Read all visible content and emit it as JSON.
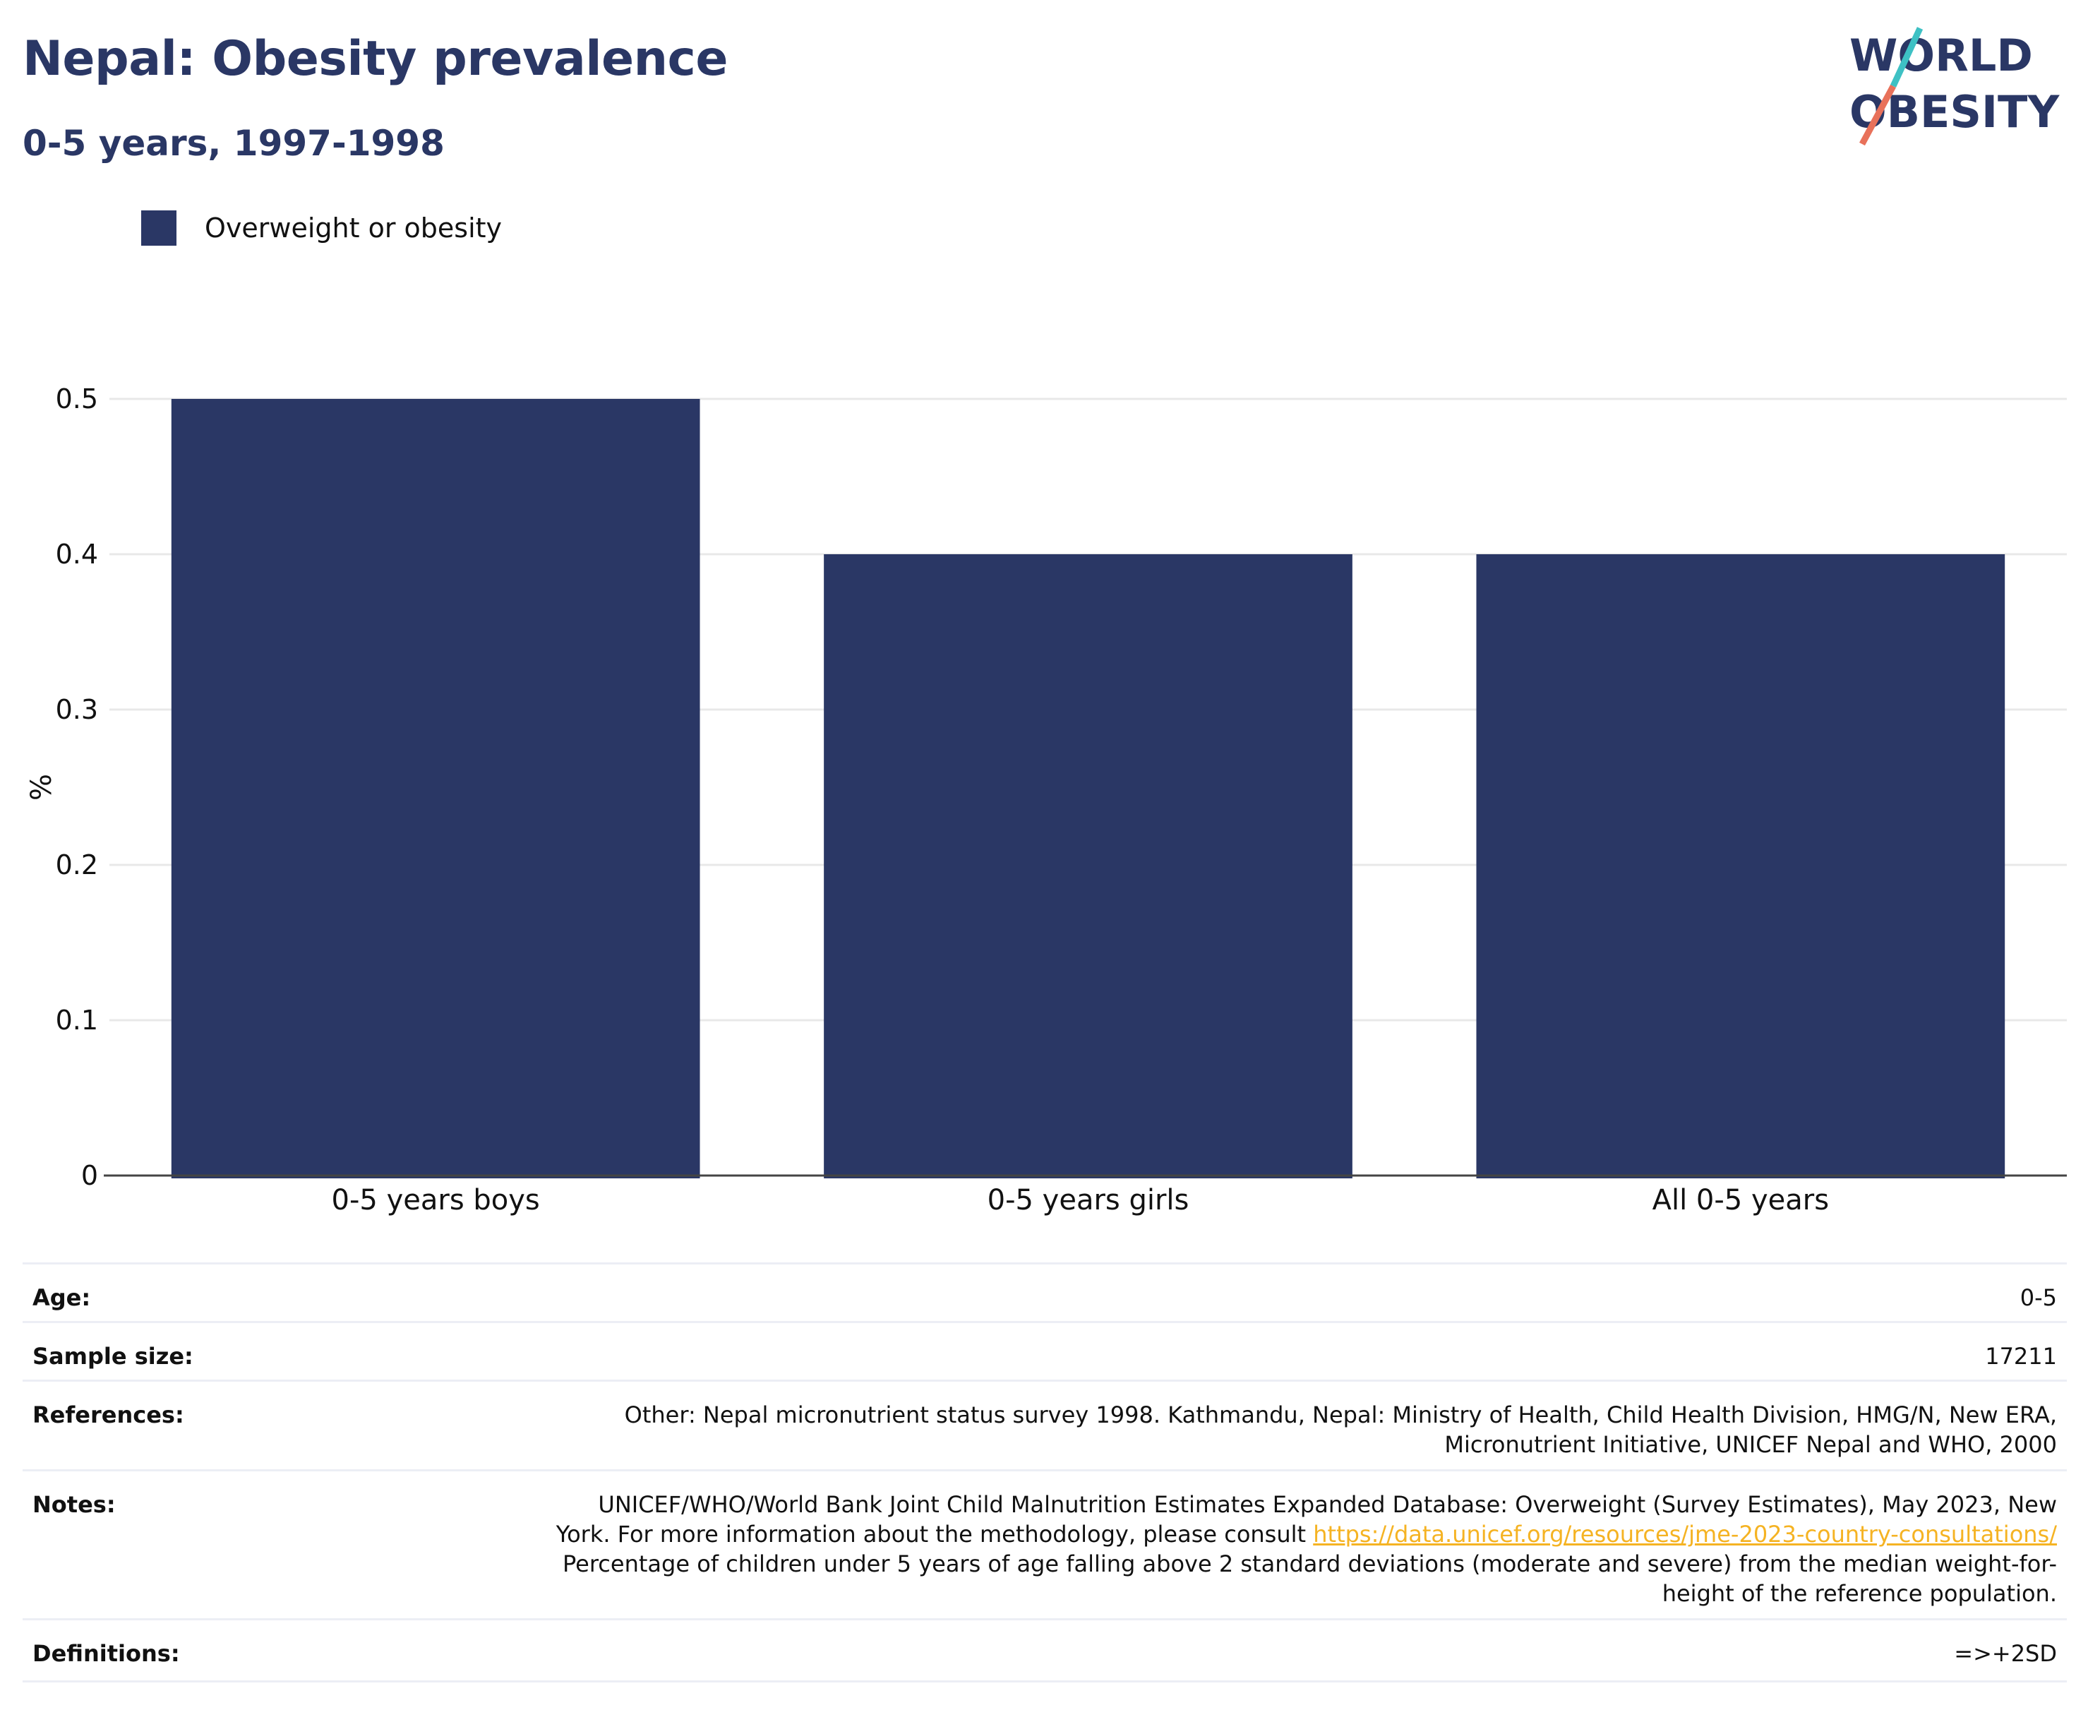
{
  "title": "Nepal: Obesity prevalence",
  "subtitle": "0-5 years, 1997-1998",
  "logo": {
    "line1": "WORLD",
    "line2": "OBESITY",
    "colors": {
      "text": "#2a3765",
      "slash_top": "#3ec1c4",
      "slash_bottom": "#e8715a"
    }
  },
  "colors": {
    "bar": "#2a3765",
    "grid": "#e8e8e8",
    "axis": "#444444",
    "link": "#f5b323"
  },
  "chart_data": {
    "type": "bar",
    "categories": [
      "0-5 years boys",
      "0-5 years girls",
      "All 0-5 years"
    ],
    "series": [
      {
        "name": "Overweight or obesity",
        "values": [
          0.5,
          0.4,
          0.4
        ]
      }
    ],
    "ylabel": "%",
    "xlabel": "",
    "ylim": [
      0,
      0.5
    ],
    "yticks": [
      "0",
      "0.1",
      "0.2",
      "0.3",
      "0.4",
      "0.5"
    ],
    "ytick_values": [
      0,
      0.1,
      0.2,
      0.3,
      0.4,
      0.5
    ],
    "grid": true,
    "legend_position": "top-left"
  },
  "meta": {
    "age": {
      "label": "Age:",
      "value": "0-5"
    },
    "sample_size": {
      "label": "Sample size:",
      "value": "17211"
    },
    "references": {
      "label": "References:",
      "line1": "Other: Nepal micronutrient status survey 1998. Kathmandu, Nepal: Ministry of Health, Child Health Division, HMG/N, New ERA,",
      "line2": "Micronutrient Initiative, UNICEF Nepal and WHO, 2000"
    },
    "notes": {
      "label": "Notes:",
      "line1": "UNICEF/WHO/World Bank Joint Child Malnutrition Estimates Expanded Database: Overweight (Survey Estimates), May 2023, New",
      "line2_prefix": "York. For more information about the methodology, please consult ",
      "link": "https://data.unicef.org/resources/jme-2023-country-consultations/",
      "line3": "Percentage of children under 5 years of age falling above 2 standard deviations (moderate and severe) from the median weight-for-",
      "line4": "height of the reference population."
    },
    "definitions": {
      "label": "Definitions:",
      "value": "=>+2SD"
    }
  }
}
